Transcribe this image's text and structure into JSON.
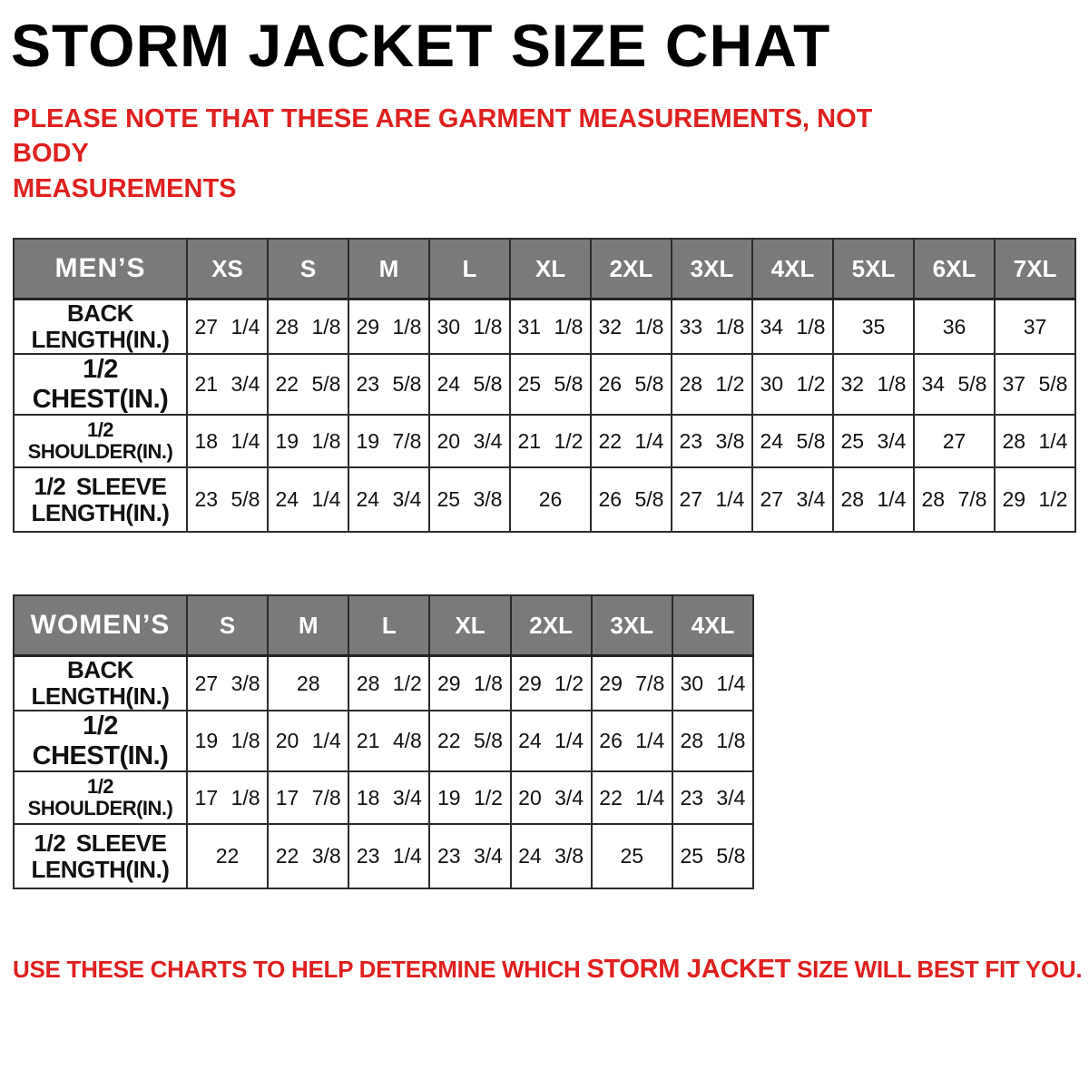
{
  "page": {
    "title": "STORM JACKET SIZE CHAT",
    "note_line1": "PLEASE NOTE THAT THESE ARE GARMENT MEASUREMENTS, NOT BODY",
    "note_line2": "MEASUREMENTS",
    "footer_prefix": "USE THESE CHARTS TO HELP DETERMINE WHICH ",
    "footer_brand": "STORM JACKET",
    "footer_suffix": "  SIZE WILL BEST FIT YOU."
  },
  "colors": {
    "accent_red": "#e01f1f",
    "header_gray": "#7a7a7a",
    "border_dark": "#2b2b2b",
    "header_text": "#ffffff"
  },
  "mens_table": {
    "title": "MEN’S",
    "sizes": [
      "XS",
      "S",
      "M",
      "L",
      "XL",
      "2XL",
      "3XL",
      "4XL",
      "5XL",
      "6XL",
      "7XL"
    ],
    "rows": [
      {
        "label": "BACK\nLENGTH(IN.)",
        "values": [
          "27 1/4",
          "28 1/8",
          "29 1/8",
          "30 1/8",
          "31 1/8",
          "32 1/8",
          "33 1/8",
          "34 1/8",
          "35",
          "36",
          "37"
        ]
      },
      {
        "label": "1/2 CHEST(IN.)",
        "values": [
          "21 3/4",
          "22 5/8",
          "23 5/8",
          "24 5/8",
          "25 5/8",
          "26 5/8",
          "28 1/2",
          "30 1/2",
          "32 1/8",
          "34 5/8",
          "37 5/8"
        ]
      },
      {
        "label": "1/2 SHOULDER(IN.)",
        "values": [
          "18 1/4",
          "19 1/8",
          "19 7/8",
          "20 3/4",
          "21 1/2",
          "22 1/4",
          "23 3/8",
          "24 5/8",
          "25 3/4",
          "27",
          "28 1/4"
        ]
      },
      {
        "label": "1/2 SLEEVE\nLENGTH(IN.)",
        "values": [
          "23 5/8",
          "24 1/4",
          "24 3/4",
          "25 3/8",
          "26",
          "26 5/8",
          "27 1/4",
          "27 3/4",
          "28 1/4",
          "28 7/8",
          "29 1/2"
        ]
      }
    ]
  },
  "womens_table": {
    "title": "WOMEN’S",
    "sizes": [
      "S",
      "M",
      "L",
      "XL",
      "2XL",
      "3XL",
      "4XL"
    ],
    "rows": [
      {
        "label": "BACK\nLENGTH(IN.)",
        "values": [
          "27 3/8",
          "28",
          "28 1/2",
          "29 1/8",
          "29 1/2",
          "29 7/8",
          "30 1/4"
        ]
      },
      {
        "label": "1/2 CHEST(IN.)",
        "values": [
          "19 1/8",
          "20 1/4",
          "21 4/8",
          "22 5/8",
          "24 1/4",
          "26 1/4",
          "28 1/8"
        ]
      },
      {
        "label": "1/2 SHOULDER(IN.)",
        "values": [
          "17 1/8",
          "17 7/8",
          "18 3/4",
          "19 1/2",
          "20 3/4",
          "22 1/4",
          "23 3/4"
        ]
      },
      {
        "label": "1/2 SLEEVE\nLENGTH(IN.)",
        "values": [
          "22",
          "22 3/8",
          "23 1/4",
          "23 3/4",
          "24 3/8",
          "25",
          "25 5/8"
        ]
      }
    ]
  }
}
